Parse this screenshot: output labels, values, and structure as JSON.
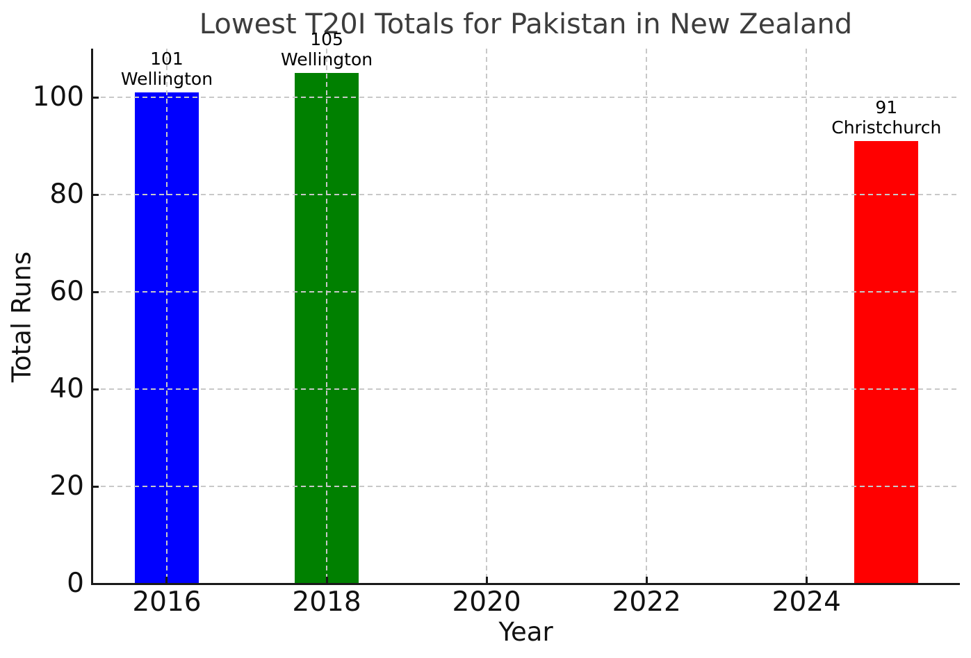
{
  "chart_data": {
    "type": "bar",
    "title": "Lowest T20I Totals for Pakistan in New Zealand",
    "xlabel": "Year",
    "ylabel": "Total Runs",
    "bars": [
      {
        "year": 2016,
        "value": 101,
        "venue": "Wellington",
        "color": "#0000ff"
      },
      {
        "year": 2018,
        "value": 105,
        "venue": "Wellington",
        "color": "#008000"
      },
      {
        "year": 2025,
        "value": 91,
        "venue": "Christchurch",
        "color": "#ff0000"
      }
    ],
    "bar_width_years": 0.8,
    "x_ticks": [
      2016,
      2018,
      2020,
      2022,
      2024
    ],
    "y_ticks": [
      0,
      20,
      40,
      60,
      80,
      100
    ],
    "xlim": [
      2015.07,
      2025.91
    ],
    "ylim": [
      0,
      110.0
    ],
    "grid": {
      "style": "dashed",
      "color": "#c8c8c8",
      "drawn_above_bars": true
    },
    "annotations": [
      "101 Wellington",
      "105 Wellington",
      "91 Christchurch"
    ],
    "legend": "none",
    "colors": {
      "title_text": "#3d3d3d",
      "axis_text": "#111111",
      "annotation_text": "#000000",
      "spine": "#1a1a1a"
    }
  }
}
